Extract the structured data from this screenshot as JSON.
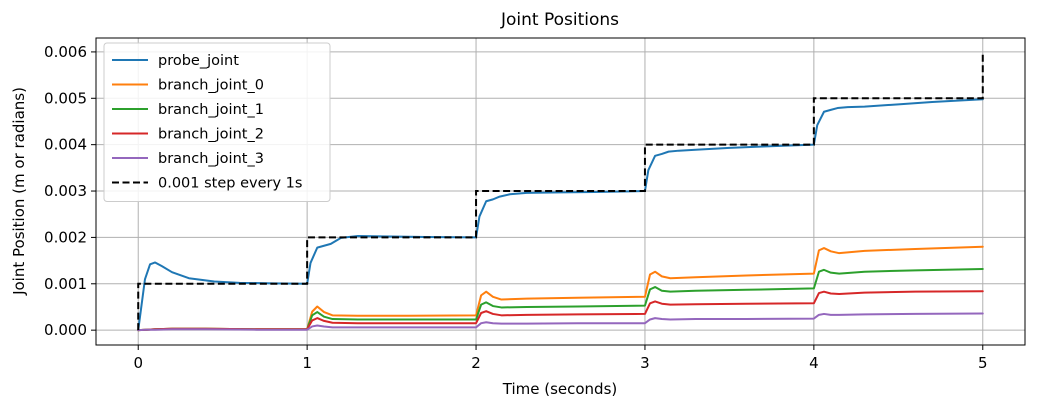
{
  "chart_data": {
    "type": "line",
    "title": "Joint Positions",
    "xlabel": "Time (seconds)",
    "ylabel": "Joint Position (m or radians)",
    "xlim": [
      -0.25,
      5.25
    ],
    "ylim": [
      -0.00032,
      0.0063
    ],
    "xticks": [
      0,
      1,
      2,
      3,
      4,
      5
    ],
    "xtick_labels": [
      "0",
      "1",
      "2",
      "3",
      "4",
      "5"
    ],
    "yticks": [
      0,
      0.001,
      0.002,
      0.003,
      0.004,
      0.005,
      0.006
    ],
    "ytick_labels": [
      "0.000",
      "0.001",
      "0.002",
      "0.003",
      "0.004",
      "0.005",
      "0.006"
    ],
    "grid": true,
    "legend_position": "upper-left",
    "series": [
      {
        "name": "probe_joint",
        "color": "#1f77b4",
        "style": "solid",
        "x": [
          0,
          0.04,
          0.07,
          0.1,
          0.14,
          0.2,
          0.3,
          0.45,
          0.6,
          0.8,
          1.0,
          1.02,
          1.06,
          1.1,
          1.14,
          1.2,
          1.3,
          1.5,
          1.7,
          2.0,
          2.02,
          2.06,
          2.1,
          2.14,
          2.2,
          2.3,
          2.5,
          2.7,
          3.0,
          3.02,
          3.06,
          3.1,
          3.14,
          3.2,
          3.3,
          3.5,
          3.7,
          4.0,
          4.02,
          4.06,
          4.1,
          4.14,
          4.2,
          4.3,
          4.5,
          4.7,
          5.0
        ],
        "y": [
          0.0,
          0.0011,
          0.00142,
          0.00146,
          0.00138,
          0.00125,
          0.00112,
          0.00105,
          0.00102,
          0.00101,
          0.001,
          0.00145,
          0.00178,
          0.00182,
          0.00186,
          0.00199,
          0.00203,
          0.00202,
          0.00201,
          0.002,
          0.00245,
          0.00278,
          0.00282,
          0.00288,
          0.00293,
          0.00296,
          0.00297,
          0.00298,
          0.003,
          0.00345,
          0.00376,
          0.0038,
          0.00385,
          0.00387,
          0.00389,
          0.00393,
          0.00396,
          0.004,
          0.00442,
          0.00471,
          0.00475,
          0.00479,
          0.00481,
          0.00482,
          0.00487,
          0.00492,
          0.00498
        ]
      },
      {
        "name": "branch_joint_0",
        "color": "#ff7f0e",
        "style": "solid",
        "x": [
          0,
          0.05,
          0.1,
          0.2,
          0.4,
          0.7,
          1.0,
          1.03,
          1.06,
          1.1,
          1.15,
          1.3,
          1.6,
          2.0,
          2.03,
          2.06,
          2.1,
          2.15,
          2.3,
          2.6,
          3.0,
          3.03,
          3.06,
          3.1,
          3.15,
          3.3,
          3.6,
          4.0,
          4.03,
          4.06,
          4.1,
          4.15,
          4.3,
          4.6,
          5.0
        ],
        "y": [
          0.0,
          1e-05,
          2e-05,
          3e-05,
          3e-05,
          2e-05,
          2e-05,
          0.0004,
          0.00051,
          0.00039,
          0.00032,
          0.00031,
          0.00031,
          0.00032,
          0.00075,
          0.00083,
          0.00072,
          0.00066,
          0.00068,
          0.0007,
          0.00072,
          0.0012,
          0.00126,
          0.00116,
          0.00112,
          0.00114,
          0.00118,
          0.00122,
          0.00172,
          0.00177,
          0.0017,
          0.00166,
          0.00171,
          0.00175,
          0.0018
        ]
      },
      {
        "name": "branch_joint_1",
        "color": "#2ca02c",
        "style": "solid",
        "x": [
          0,
          0.05,
          0.1,
          0.2,
          0.4,
          0.7,
          1.0,
          1.03,
          1.06,
          1.1,
          1.15,
          1.3,
          1.6,
          2.0,
          2.03,
          2.06,
          2.1,
          2.15,
          2.3,
          2.6,
          3.0,
          3.03,
          3.06,
          3.1,
          3.15,
          3.3,
          3.6,
          4.0,
          4.03,
          4.06,
          4.1,
          4.15,
          4.3,
          4.6,
          5.0
        ],
        "y": [
          0.0,
          1e-05,
          2e-05,
          3e-05,
          3e-05,
          2e-05,
          2e-05,
          0.00032,
          0.00039,
          0.00029,
          0.00024,
          0.00023,
          0.00023,
          0.00023,
          0.00055,
          0.0006,
          0.00052,
          0.00049,
          0.0005,
          0.00051,
          0.00053,
          0.00088,
          0.00093,
          0.00085,
          0.00083,
          0.00085,
          0.00087,
          0.0009,
          0.00126,
          0.0013,
          0.00124,
          0.00122,
          0.00126,
          0.00129,
          0.00132
        ]
      },
      {
        "name": "branch_joint_2",
        "color": "#d62728",
        "style": "solid",
        "x": [
          0,
          0.05,
          0.1,
          0.2,
          0.4,
          0.7,
          1.0,
          1.03,
          1.06,
          1.1,
          1.15,
          1.3,
          1.6,
          2.0,
          2.03,
          2.06,
          2.1,
          2.15,
          2.3,
          2.6,
          3.0,
          3.03,
          3.06,
          3.1,
          3.15,
          3.3,
          3.6,
          4.0,
          4.03,
          4.06,
          4.1,
          4.15,
          4.3,
          4.6,
          5.0
        ],
        "y": [
          0.0,
          1e-05,
          2e-05,
          3e-05,
          3e-05,
          2e-05,
          2e-05,
          0.00021,
          0.00026,
          0.0002,
          0.00016,
          0.00015,
          0.00015,
          0.00015,
          0.00037,
          0.00041,
          0.00035,
          0.00032,
          0.00033,
          0.00034,
          0.00035,
          0.00058,
          0.00062,
          0.00057,
          0.00055,
          0.00056,
          0.00057,
          0.00058,
          0.0008,
          0.00083,
          0.00079,
          0.00078,
          0.00081,
          0.00083,
          0.00084
        ]
      },
      {
        "name": "branch_joint_3",
        "color": "#9467bd",
        "style": "solid",
        "x": [
          0,
          0.05,
          0.1,
          0.2,
          0.4,
          0.7,
          1.0,
          1.03,
          1.06,
          1.1,
          1.15,
          1.3,
          1.6,
          2.0,
          2.03,
          2.06,
          2.1,
          2.15,
          2.3,
          2.6,
          3.0,
          3.03,
          3.06,
          3.1,
          3.15,
          3.3,
          3.6,
          4.0,
          4.03,
          4.06,
          4.1,
          4.15,
          4.3,
          4.6,
          5.0
        ],
        "y": [
          0.0,
          1e-05,
          1e-05,
          2e-05,
          2e-05,
          1e-05,
          1e-05,
          8e-05,
          0.0001,
          8e-05,
          6e-05,
          6e-05,
          6e-05,
          6e-05,
          0.00015,
          0.00017,
          0.00015,
          0.00014,
          0.00014,
          0.00015,
          0.00015,
          0.00023,
          0.00026,
          0.00024,
          0.00023,
          0.00024,
          0.00024,
          0.00025,
          0.00033,
          0.00035,
          0.00033,
          0.00033,
          0.00034,
          0.00035,
          0.00036
        ]
      },
      {
        "name": "0.001 step every 1s",
        "color": "#000000",
        "style": "dashed",
        "x": [
          0,
          0,
          1,
          1,
          2,
          2,
          3,
          3,
          4,
          4,
          5,
          5
        ],
        "y": [
          0,
          0.001,
          0.001,
          0.002,
          0.002,
          0.003,
          0.003,
          0.004,
          0.004,
          0.005,
          0.005,
          0.006
        ]
      }
    ]
  }
}
